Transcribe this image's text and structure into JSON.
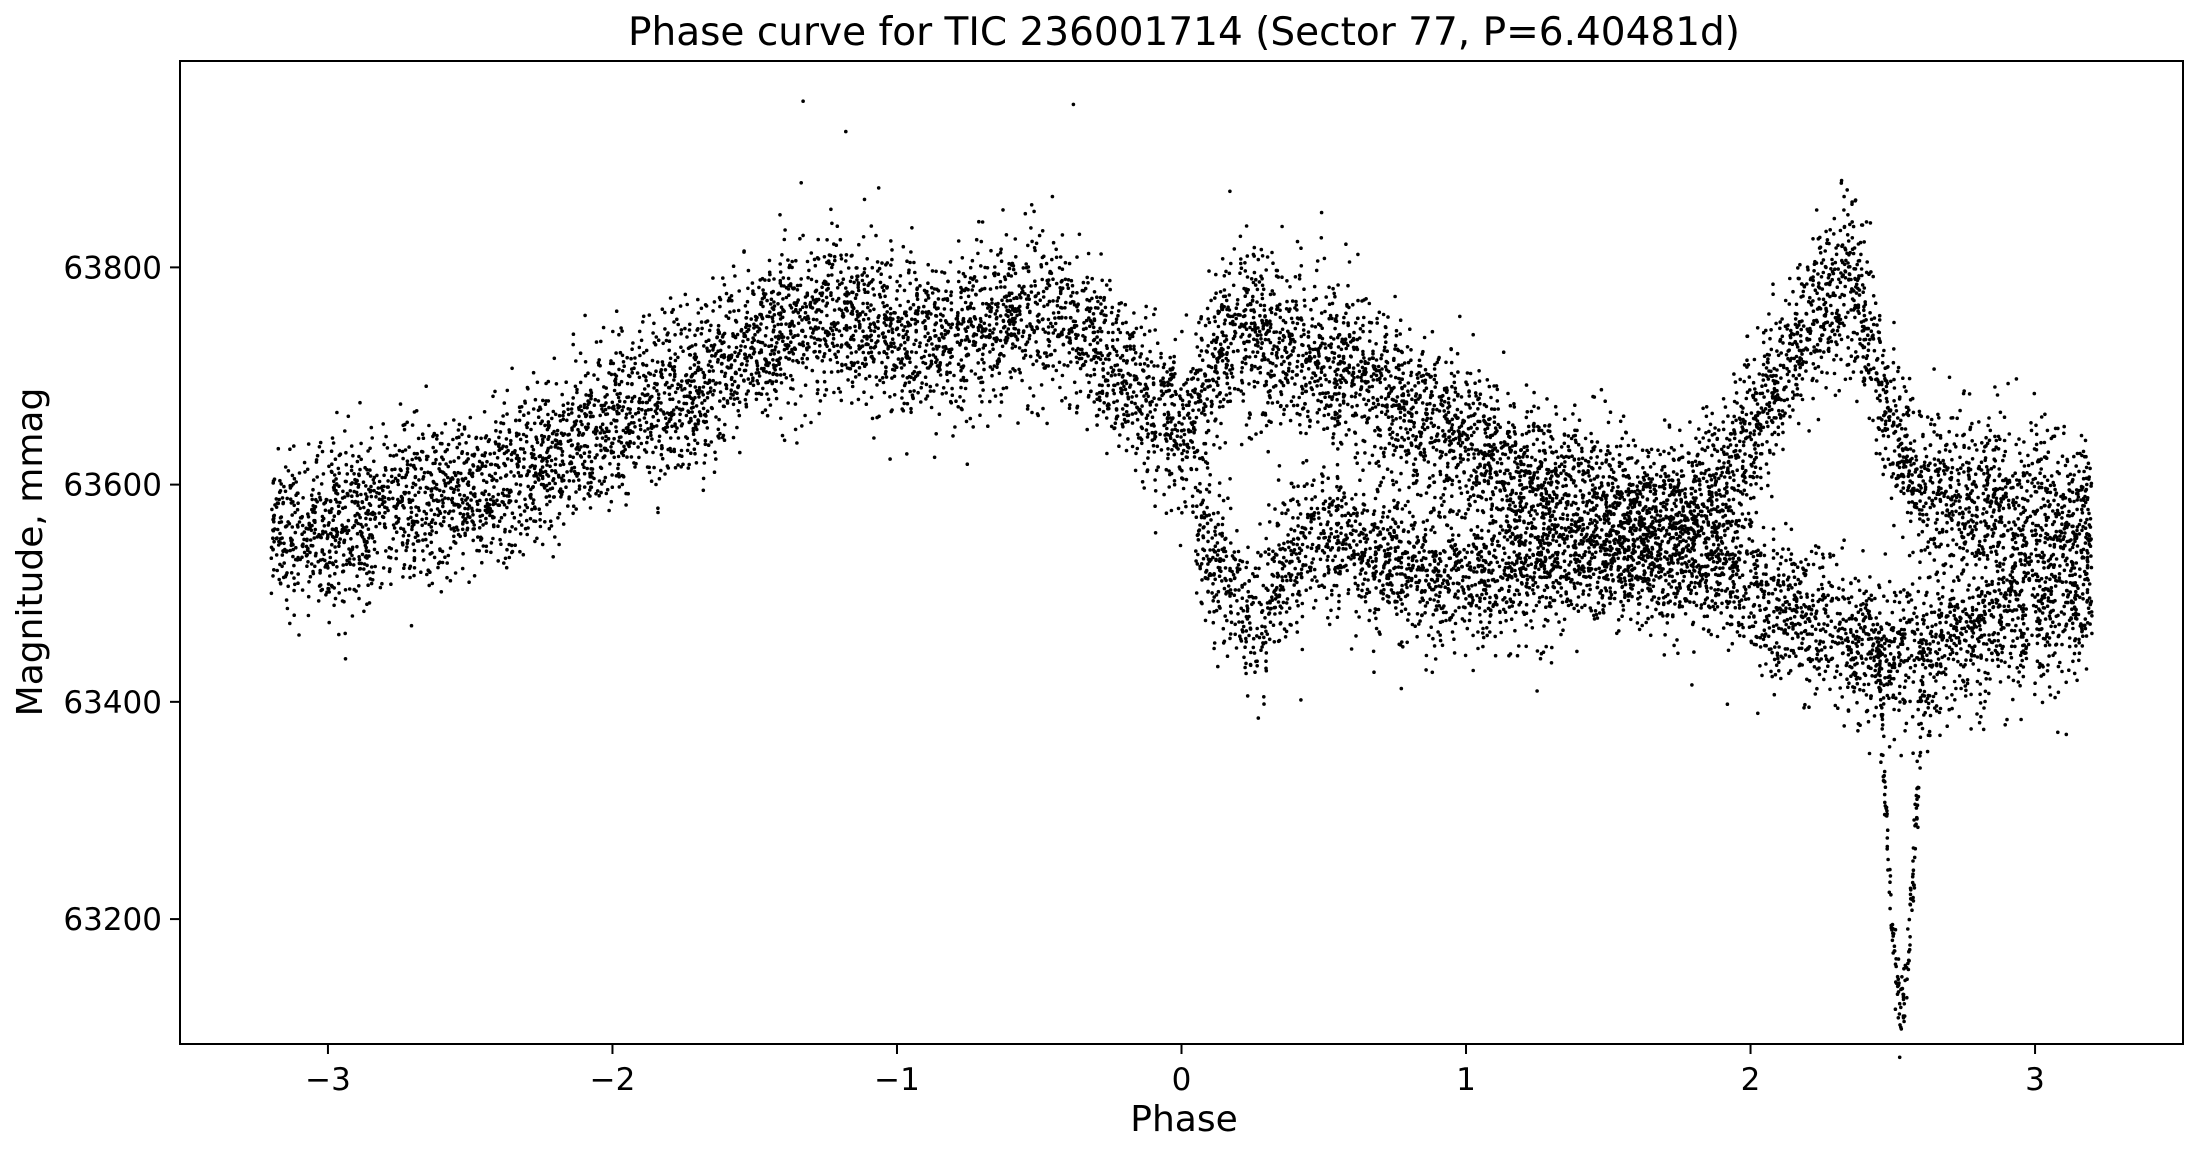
{
  "chart_data": {
    "type": "scatter",
    "title": "Phase curve for TIC 236001714 (Sector 77, P=6.40481d)",
    "xlabel": "Phase",
    "ylabel": "Magnitude, mmag",
    "xlim": [
      -3.52,
      3.52
    ],
    "ylim": [
      63085,
      63990
    ],
    "x_ticks": [
      -3,
      -2,
      -1,
      0,
      1,
      2,
      3
    ],
    "x_tick_labels": [
      "−3",
      "−2",
      "−1",
      "0",
      "1",
      "2",
      "3"
    ],
    "y_ticks": [
      63200,
      63400,
      63600,
      63800
    ],
    "y_tick_labels": [
      "63200",
      "63400",
      "63600",
      "63800"
    ],
    "grid": false,
    "marker_color": "#000000",
    "x_range": [
      -3.2,
      3.2
    ],
    "trend": [
      [
        -3.2,
        63555
      ],
      [
        -3.0,
        63560
      ],
      [
        -2.8,
        63575
      ],
      [
        -2.6,
        63590
      ],
      [
        -2.4,
        63600
      ],
      [
        -2.2,
        63625
      ],
      [
        -2.0,
        63655
      ],
      [
        -1.8,
        63680
      ],
      [
        -1.6,
        63715
      ],
      [
        -1.4,
        63745
      ],
      [
        -1.2,
        63760
      ],
      [
        -1.0,
        63740
      ],
      [
        -0.8,
        63735
      ],
      [
        -0.6,
        63755
      ],
      [
        -0.45,
        63760
      ],
      [
        -0.3,
        63720
      ],
      [
        -0.1,
        63675
      ],
      [
        0.0,
        63645
      ],
      [
        0.1,
        63700
      ],
      [
        0.2,
        63745
      ],
      [
        0.3,
        63730
      ],
      [
        0.5,
        63715
      ],
      [
        0.7,
        63685
      ],
      [
        0.9,
        63655
      ],
      [
        1.1,
        63620
      ],
      [
        1.3,
        63590
      ],
      [
        1.5,
        63580
      ],
      [
        1.7,
        63565
      ],
      [
        1.9,
        63600
      ],
      [
        2.05,
        63680
      ],
      [
        2.2,
        63740
      ],
      [
        2.35,
        63800
      ],
      [
        2.45,
        63690
      ],
      [
        2.6,
        63590
      ],
      [
        2.8,
        63585
      ],
      [
        3.0,
        63575
      ],
      [
        3.2,
        63565
      ]
    ],
    "lower_branches": [
      [
        0.05,
        63560
      ],
      [
        0.15,
        63520
      ],
      [
        0.25,
        63470
      ],
      [
        0.35,
        63520
      ],
      [
        0.5,
        63560
      ],
      [
        0.7,
        63530
      ],
      [
        0.9,
        63510
      ],
      [
        1.1,
        63520
      ],
      [
        1.3,
        63530
      ],
      [
        1.6,
        63540
      ],
      [
        1.9,
        63525
      ],
      [
        2.1,
        63490
      ],
      [
        2.3,
        63460
      ],
      [
        2.45,
        63450
      ],
      [
        2.6,
        63440
      ],
      [
        2.8,
        63470
      ],
      [
        3.0,
        63480
      ],
      [
        3.2,
        63500
      ]
    ],
    "eclipse": {
      "center": 2.53,
      "minimum": 63120,
      "baseline": 63460,
      "half_width": 0.08
    },
    "highlights": [
      [
        -1.33,
        63953
      ],
      [
        -0.38,
        63950
      ],
      [
        -1.18,
        63925
      ],
      [
        2.32,
        63880
      ],
      [
        0.17,
        63870
      ],
      [
        0.27,
        63385
      ],
      [
        1.25,
        63410
      ],
      [
        3.08,
        63372
      ],
      [
        3.11,
        63370
      ]
    ]
  }
}
